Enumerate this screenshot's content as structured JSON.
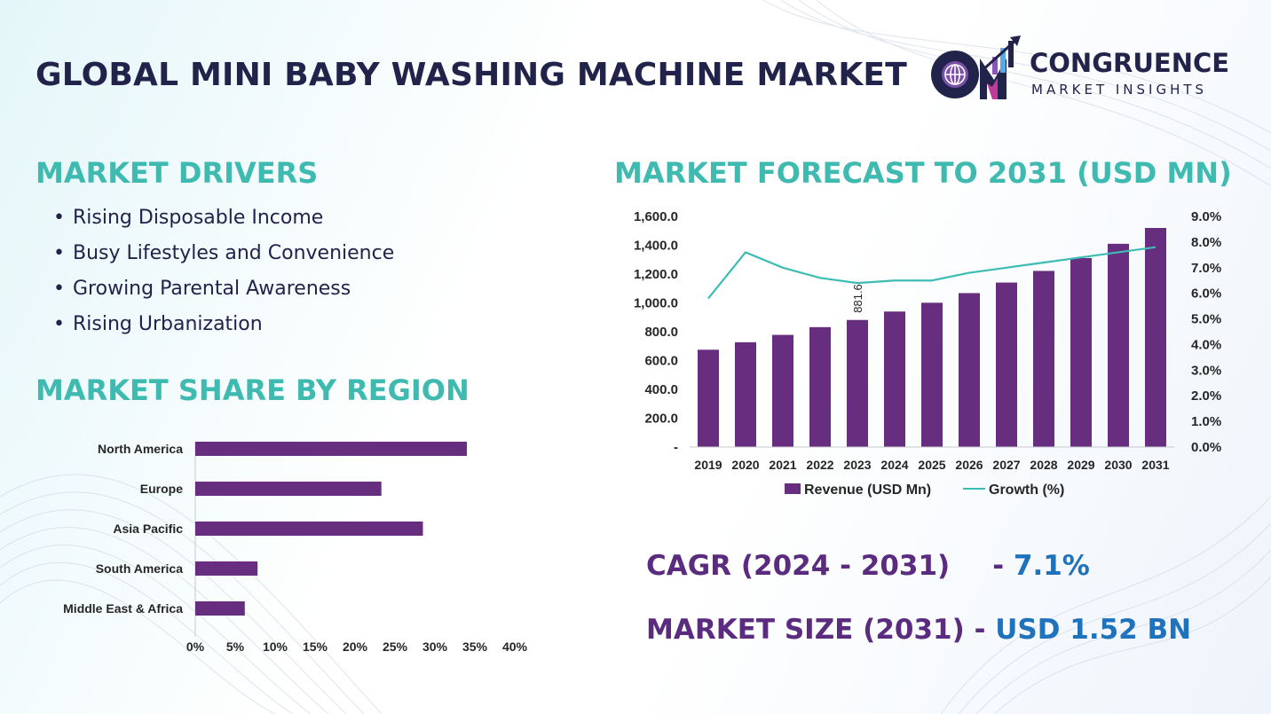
{
  "page": {
    "title": "GLOBAL MINI BABY WASHING MACHINE MARKET"
  },
  "logo": {
    "name": "CONGRUENCE",
    "subtitle": "MARKET INSIGHTS"
  },
  "drivers": {
    "heading": "MARKET DRIVERS",
    "items": [
      "Rising Disposable Income",
      "Busy Lifestyles and Convenience",
      "Growing Parental  Awareness",
      "Rising Urbanization"
    ]
  },
  "region": {
    "heading": "MARKET SHARE BY REGION"
  },
  "forecast": {
    "heading": "MARKET FORECAST TO 2031 (USD MN)"
  },
  "stats": {
    "cagr_label": "CAGR (2024 - 2031)",
    "cagr_sep": "- ",
    "cagr_value": "7.1%",
    "size_label": "MARKET SIZE (2031)",
    "size_sep": " - ",
    "size_value": "USD 1.52 BN"
  },
  "colors": {
    "bar": "#672d7f",
    "line": "#3cbcb4",
    "heading": "#3fbab0",
    "title": "#22234a",
    "stat_value": "#1f73bd"
  },
  "chart_data": [
    {
      "type": "bar",
      "orientation": "horizontal",
      "categories": [
        "North America",
        "Europe",
        "Asia Pacific",
        "South America",
        "Middle East & Africa"
      ],
      "values": [
        34,
        23.3,
        28.5,
        7.8,
        6.2
      ],
      "xticks": [
        "0%",
        "5%",
        "10%",
        "15%",
        "20%",
        "25%",
        "30%",
        "35%",
        "40%"
      ],
      "xlim": [
        0,
        40
      ],
      "grid": false
    },
    {
      "type": "bar+line",
      "categories": [
        "2019",
        "2020",
        "2021",
        "2022",
        "2023",
        "2024",
        "2025",
        "2026",
        "2027",
        "2028",
        "2029",
        "2030",
        "2031"
      ],
      "series": [
        {
          "name": "Revenue (USD Mn)",
          "type": "bar",
          "axis": "left",
          "values": [
            675,
            727,
            778,
            832,
            881.6,
            940,
            1001,
            1068,
            1141,
            1222,
            1311,
            1410,
            1520
          ]
        },
        {
          "name": "Growth (%)",
          "type": "line",
          "axis": "right",
          "values": [
            5.8,
            7.6,
            7.0,
            6.6,
            6.4,
            6.5,
            6.5,
            6.8,
            7.0,
            7.2,
            7.4,
            7.6,
            7.8
          ]
        }
      ],
      "data_labels": [
        {
          "category": "2023",
          "text": "881.6"
        }
      ],
      "yticks_left": [
        "-",
        "200.0",
        "400.0",
        "600.0",
        "800.0",
        "1,000.0",
        "1,200.0",
        "1,400.0",
        "1,600.0"
      ],
      "yticks_right": [
        "0.0%",
        "1.0%",
        "2.0%",
        "3.0%",
        "4.0%",
        "5.0%",
        "6.0%",
        "7.0%",
        "8.0%",
        "9.0%"
      ],
      "ylim_left": [
        0,
        1600
      ],
      "ylim_right": [
        0,
        9
      ],
      "legend": "bottom",
      "grid": false
    }
  ]
}
